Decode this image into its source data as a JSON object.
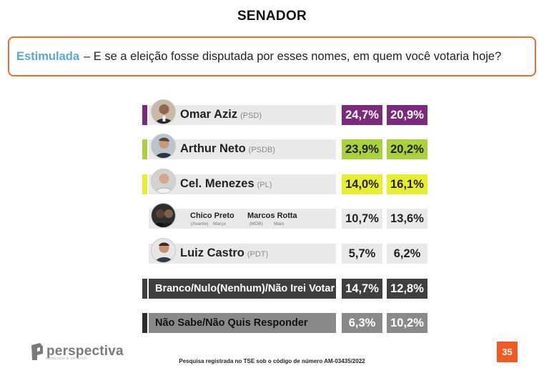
{
  "header": {
    "title": "SENADOR"
  },
  "question": {
    "lead": "Estimulada",
    "text": "– E se a eleição fosse disputada por esses nomes, em quem você votaria hoje?"
  },
  "rows": [
    {
      "name": "Omar Aziz",
      "party": "(PSD)",
      "v1": "24,7%",
      "v2": "20,9%"
    },
    {
      "name": "Arthur Neto",
      "party": "(PSDB)",
      "v1": "23,9%",
      "v2": "20,2%"
    },
    {
      "name": "Cel. Menezes",
      "party": "(PL)",
      "v1": "14,0%",
      "v2": "16,1%"
    },
    {
      "name_a": "Chico Preto",
      "party_a": "(Avante)",
      "month_a": "Março",
      "name_b": "Marcos Rotta",
      "party_b": "(MDB)",
      "month_b": "Maio",
      "v1": "10,7%",
      "v2": "13,6%"
    },
    {
      "name": "Luiz Castro",
      "party": "(PDT)",
      "v1": "5,7%",
      "v2": "6,2%"
    },
    {
      "name": "Branco/Nulo(Nenhum)/Não Irei Votar",
      "v1": "14,7%",
      "v2": "12,8%"
    },
    {
      "name": "Não Sabe/Não Quis Responder",
      "v1": "6,3%",
      "v2": "10,2%"
    }
  ],
  "colors": {
    "purple": "#7b2a7c",
    "green": "#a8d13a",
    "yellow": "#e6ee2e",
    "dark": "#3f3f3f",
    "mid_gray": "#888888",
    "light": "#e9e9e9",
    "orange": "#f26a2e"
  },
  "chart_data": {
    "type": "bar",
    "categories": [
      "Omar Aziz",
      "Arthur Neto",
      "Cel. Menezes",
      "Chico Preto / Marcos Rotta",
      "Luiz Castro",
      "Branco/Nulo(Nenhum)/Não Irei Votar",
      "Não Sabe/Não Quis Responder"
    ],
    "series": [
      {
        "values": [
          24.7,
          23.9,
          14.0,
          10.7,
          5.7,
          14.7,
          6.3
        ]
      },
      {
        "values": [
          20.9,
          20.2,
          16.1,
          13.6,
          6.2,
          12.8,
          10.2
        ]
      }
    ],
    "title": "SENADOR"
  },
  "logo": {
    "word": "perspectiva",
    "tagline": "MERCADO E OPINIÃO"
  },
  "footer": {
    "text": "Pesquisa registrada no TSE sob o código de número AM-03435/2022"
  },
  "page": {
    "number": "35"
  }
}
